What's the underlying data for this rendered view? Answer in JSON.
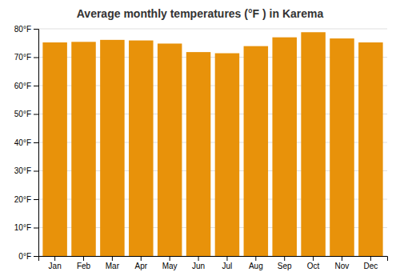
{
  "chart_data": {
    "type": "bar",
    "title": "Average monthly temperatures (°F ) in Karema",
    "categories": [
      "Jan",
      "Feb",
      "Mar",
      "Apr",
      "May",
      "Jun",
      "Jul",
      "Aug",
      "Sep",
      "Oct",
      "Nov",
      "Dec"
    ],
    "values": [
      75.2,
      75.4,
      76.1,
      75.9,
      74.8,
      71.8,
      71.4,
      73.9,
      77.0,
      78.8,
      76.6,
      75.2
    ],
    "color": "#E8920A",
    "ylim": [
      0,
      80
    ],
    "yticks": [
      {
        "value": 0,
        "label": "0°F"
      },
      {
        "value": 10,
        "label": "10°F"
      },
      {
        "value": 20,
        "label": "20°F"
      },
      {
        "value": 30,
        "label": "30°F"
      },
      {
        "value": 40,
        "label": "40°F"
      },
      {
        "value": 50,
        "label": "50°F"
      },
      {
        "value": 60,
        "label": "60°F"
      },
      {
        "value": 70,
        "label": "70°F"
      },
      {
        "value": 80,
        "label": "80°F"
      }
    ],
    "grid": true
  }
}
